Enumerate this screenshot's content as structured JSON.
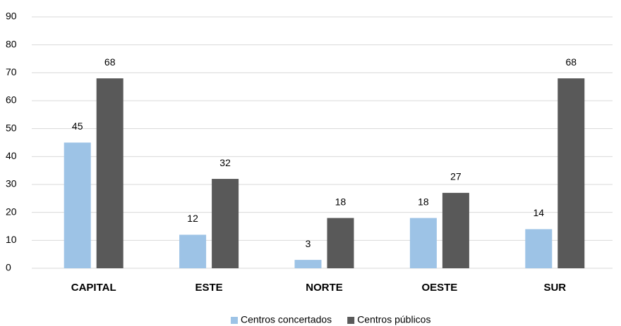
{
  "chart_data": {
    "type": "bar",
    "categories": [
      "CAPITAL",
      "ESTE",
      "NORTE",
      "OESTE",
      "SUR"
    ],
    "series": [
      {
        "name": "Centros concertados",
        "color": "#9dc3e6",
        "values": [
          45,
          12,
          3,
          18,
          14
        ]
      },
      {
        "name": "Centros públicos",
        "color": "#595959",
        "values": [
          68,
          32,
          18,
          27,
          68
        ]
      }
    ],
    "ylim": [
      0,
      90
    ],
    "yticks": [
      0,
      10,
      20,
      30,
      40,
      50,
      60,
      70,
      80,
      90
    ],
    "grid": true,
    "legend": "bottom"
  }
}
